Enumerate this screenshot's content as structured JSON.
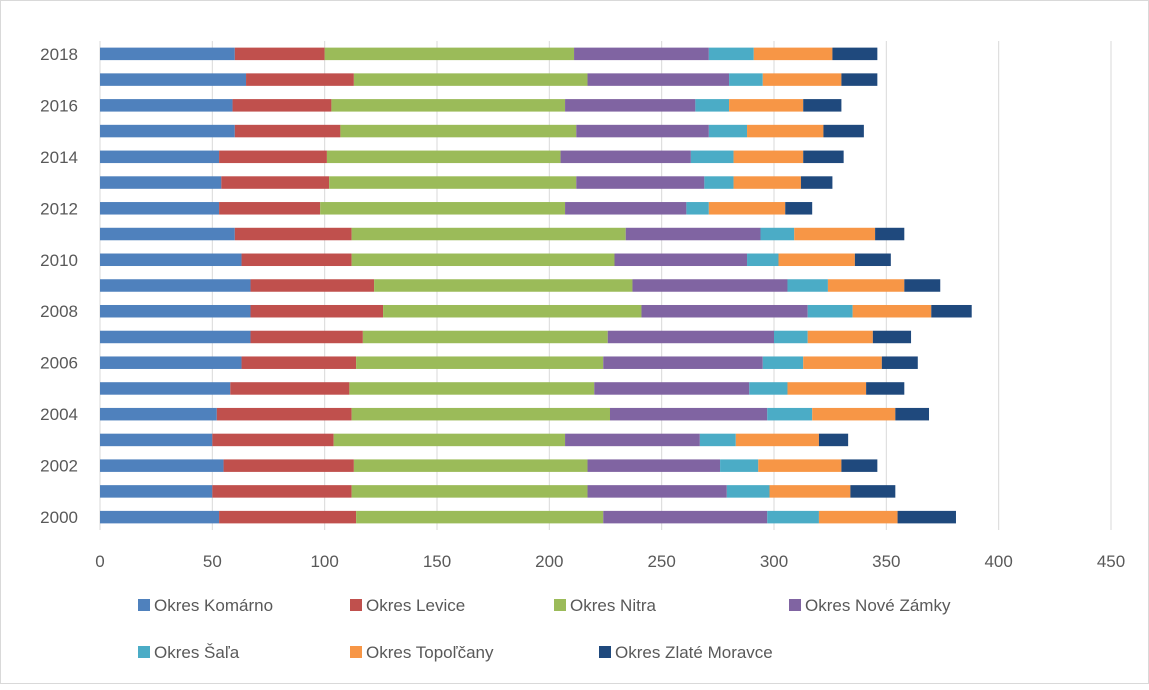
{
  "chart_data": {
    "type": "bar",
    "orientation": "horizontal",
    "stacked": true,
    "title": "",
    "xlabel": "",
    "ylabel": "",
    "xlim": [
      0,
      450
    ],
    "x_ticks": [
      "0",
      "50",
      "100",
      "150",
      "200",
      "250",
      "300",
      "350",
      "400",
      "450"
    ],
    "grid": "vertical",
    "legend_position": "bottom",
    "categories": [
      "2000",
      "2001",
      "2002",
      "2003",
      "2004",
      "2005",
      "2006",
      "2007",
      "2008",
      "2009",
      "2010",
      "2011",
      "2012",
      "2013",
      "2014",
      "2015",
      "2016",
      "2017",
      "2018"
    ],
    "category_labels": [
      "2000",
      "",
      "2002",
      "",
      "2004",
      "",
      "2006",
      "",
      "2008",
      "",
      "2010",
      "",
      "2012",
      "",
      "2014",
      "",
      "2016",
      "",
      "2018"
    ],
    "series": [
      {
        "name": "Okres Komárno",
        "color": "#4F81BD",
        "values": [
          53,
          50,
          55,
          50,
          52,
          58,
          63,
          67,
          67,
          67,
          63,
          60,
          53,
          54,
          53,
          60,
          59,
          65,
          60
        ]
      },
      {
        "name": "Okres Levice",
        "color": "#C0504D",
        "values": [
          61,
          62,
          58,
          54,
          60,
          53,
          51,
          50,
          59,
          55,
          49,
          52,
          45,
          48,
          48,
          47,
          44,
          48,
          40
        ]
      },
      {
        "name": "Okres Nitra",
        "color": "#9BBB59",
        "values": [
          110,
          105,
          104,
          103,
          115,
          109,
          110,
          109,
          115,
          115,
          117,
          122,
          109,
          110,
          104,
          105,
          104,
          104,
          111
        ]
      },
      {
        "name": "Okres Nové Zámky",
        "color": "#8064A2",
        "values": [
          73,
          62,
          59,
          60,
          70,
          69,
          71,
          74,
          74,
          69,
          59,
          60,
          54,
          57,
          58,
          59,
          58,
          63,
          60
        ]
      },
      {
        "name": "Okres Šaľa",
        "color": "#4BACC6",
        "values": [
          23,
          19,
          17,
          16,
          20,
          17,
          18,
          15,
          20,
          18,
          14,
          15,
          10,
          13,
          19,
          17,
          15,
          15,
          20
        ]
      },
      {
        "name": "Okres Topoľčany",
        "color": "#F79646",
        "values": [
          35,
          36,
          37,
          37,
          37,
          35,
          35,
          29,
          35,
          34,
          34,
          36,
          34,
          30,
          31,
          34,
          33,
          35,
          35
        ]
      },
      {
        "name": "Okres Zlaté Moravce",
        "color": "#1F497D",
        "values": [
          26,
          20,
          16,
          13,
          15,
          17,
          16,
          17,
          18,
          16,
          16,
          13,
          12,
          14,
          18,
          18,
          17,
          16,
          20
        ]
      }
    ]
  }
}
